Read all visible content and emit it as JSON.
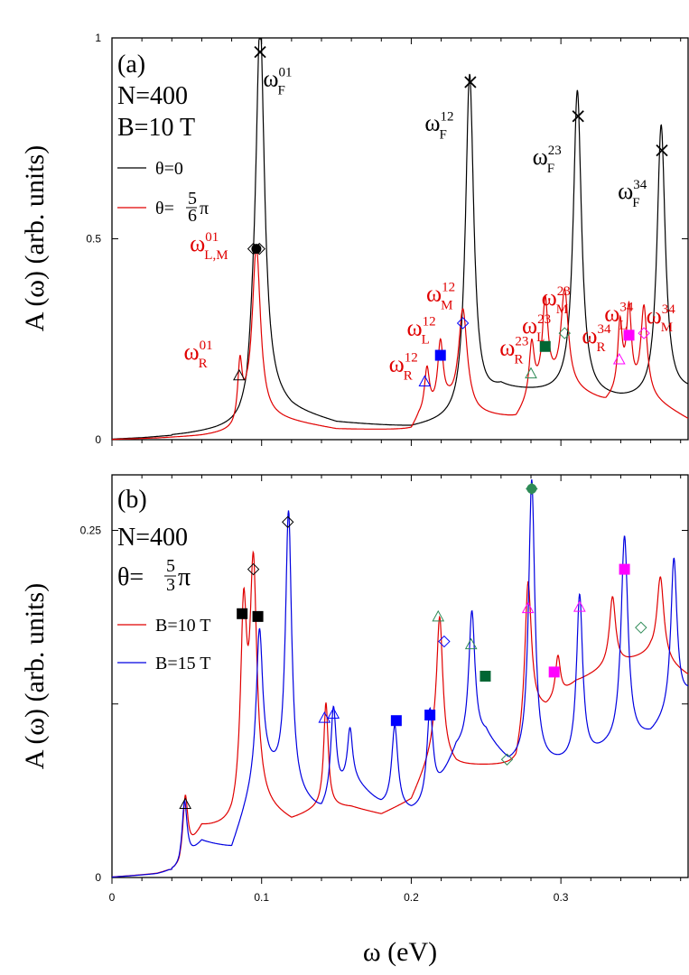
{
  "chart_data": [
    {
      "panel": "(a)",
      "type": "line",
      "info_lines": [
        "N=400",
        "B=10 T"
      ],
      "xlabel": "ω (eV)",
      "ylabel": "A (ω) (arb. units)",
      "xlim": [
        0,
        0.385
      ],
      "ylim": [
        0,
        1.0
      ],
      "xticks": [
        0,
        0.1,
        0.2,
        0.3
      ],
      "xtick_labels": [
        "",
        "",
        "",
        ""
      ],
      "yticks": [
        0,
        0.5,
        1
      ],
      "ytick_labels": [
        "0",
        "0.5",
        "1"
      ],
      "legend": "upper-left",
      "series": [
        {
          "name": "θ=0",
          "color": "#000000",
          "base": [
            [
              0,
              0.0
            ],
            [
              0.02,
              0.003
            ],
            [
              0.05,
              0.012
            ],
            [
              0.07,
              0.02
            ],
            [
              0.08,
              0.025
            ],
            [
              0.085,
              0.03
            ],
            [
              0.09,
              0.045
            ],
            [
              0.094,
              0.12
            ],
            [
              0.12,
              0.07
            ],
            [
              0.15,
              0.04
            ],
            [
              0.2,
              0.028
            ],
            [
              0.23,
              0.045
            ],
            [
              0.26,
              0.12
            ],
            [
              0.3,
              0.11
            ],
            [
              0.34,
              0.095
            ],
            [
              0.36,
              0.095
            ],
            [
              0.385,
              0.115
            ]
          ],
          "peaks": [
            [
              0.099,
              0.93,
              0.0035
            ],
            [
              0.239,
              0.84,
              0.0033
            ],
            [
              0.311,
              0.76,
              0.0033
            ],
            [
              0.367,
              0.68,
              0.0033
            ]
          ]
        },
        {
          "name": "θ= 5/6π",
          "color": "#e00000",
          "base": [
            [
              0,
              0.0
            ],
            [
              0.03,
              0.003
            ],
            [
              0.06,
              0.008
            ],
            [
              0.08,
              0.015
            ],
            [
              0.085,
              0.02
            ],
            [
              0.09,
              0.06
            ],
            [
              0.11,
              0.05
            ],
            [
              0.15,
              0.025
            ],
            [
              0.2,
              0.022
            ],
            [
              0.205,
              0.05
            ],
            [
              0.225,
              0.08
            ],
            [
              0.245,
              0.06
            ],
            [
              0.27,
              0.05
            ],
            [
              0.28,
              0.1
            ],
            [
              0.29,
              0.14
            ],
            [
              0.31,
              0.12
            ],
            [
              0.33,
              0.09
            ],
            [
              0.34,
              0.12
            ],
            [
              0.36,
              0.1
            ],
            [
              0.385,
              0.05
            ]
          ],
          "peaks": [
            [
              0.0855,
              0.15,
              0.0018
            ],
            [
              0.0965,
              0.42,
              0.0033
            ],
            [
              0.2105,
              0.11,
              0.002
            ],
            [
              0.2195,
              0.16,
              0.0022
            ],
            [
              0.2345,
              0.25,
              0.0035
            ],
            [
              0.2805,
              0.13,
              0.002
            ],
            [
              0.2895,
              0.2,
              0.0022
            ],
            [
              0.3025,
              0.24,
              0.003
            ],
            [
              0.3395,
              0.16,
              0.0018
            ],
            [
              0.3455,
              0.2,
              0.002
            ],
            [
              0.3555,
              0.22,
              0.0025
            ]
          ]
        }
      ],
      "markers": [
        {
          "shape": "cross",
          "color": "#000000",
          "points": [
            [
              0.099,
              0.965
            ],
            [
              0.2395,
              0.89
            ],
            [
              0.3115,
              0.805
            ],
            [
              0.3675,
              0.72
            ]
          ]
        },
        {
          "shape": "triangle",
          "color": "#000000",
          "points": [
            [
              0.085,
              0.16
            ]
          ]
        },
        {
          "shape": "triangle",
          "color": "#0000ff",
          "points": [
            [
              0.209,
              0.145
            ]
          ]
        },
        {
          "shape": "triangle",
          "color": "#2e8b57",
          "points": [
            [
              0.28,
              0.165
            ]
          ]
        },
        {
          "shape": "triangle",
          "color": "#ff00ff",
          "points": [
            [
              0.339,
              0.2
            ]
          ]
        },
        {
          "shape": "diamond",
          "color": "#000000",
          "points": [
            [
              0.0945,
              0.475
            ],
            [
              0.0985,
              0.475
            ]
          ]
        },
        {
          "shape": "diamond",
          "color": "#0000ff",
          "points": [
            [
              0.2345,
              0.29
            ]
          ]
        },
        {
          "shape": "diamond",
          "color": "#2e8b57",
          "points": [
            [
              0.3025,
              0.265
            ]
          ]
        },
        {
          "shape": "diamond",
          "color": "#ff00ff",
          "points": [
            [
              0.3555,
              0.265
            ]
          ]
        },
        {
          "shape": "square",
          "color": "#0000ff",
          "points": [
            [
              0.2195,
              0.21
            ]
          ]
        },
        {
          "shape": "square",
          "color": "#006633",
          "points": [
            [
              0.2895,
              0.232
            ]
          ]
        },
        {
          "shape": "square",
          "color": "#ff00ff",
          "points": [
            [
              0.3455,
              0.26
            ]
          ]
        },
        {
          "shape": "filled-circle",
          "color": "#000000",
          "points": [
            [
              0.0965,
              0.475
            ]
          ]
        }
      ],
      "annotations": [
        {
          "base": "ω",
          "sup": "01",
          "sub": "F",
          "color": "#000000",
          "x": 0.101,
          "y": 0.88
        },
        {
          "base": "ω",
          "sup": "12",
          "sub": "F",
          "color": "#000000",
          "x": 0.209,
          "y": 0.77
        },
        {
          "base": "ω",
          "sup": "23",
          "sub": "F",
          "color": "#000000",
          "x": 0.281,
          "y": 0.685
        },
        {
          "base": "ω",
          "sup": "34",
          "sub": "F",
          "color": "#000000",
          "x": 0.338,
          "y": 0.6
        },
        {
          "base": "ω",
          "sup": "01",
          "sub": "L,M",
          "color": "#e00000",
          "x": 0.052,
          "y": 0.47
        },
        {
          "base": "ω",
          "sup": "01",
          "sub": "R",
          "color": "#e00000",
          "x": 0.048,
          "y": 0.2
        },
        {
          "base": "ω",
          "sup": "12",
          "sub": "M",
          "color": "#e00000",
          "x": 0.21,
          "y": 0.345
        },
        {
          "base": "ω",
          "sup": "12",
          "sub": "L",
          "color": "#e00000",
          "x": 0.197,
          "y": 0.26
        },
        {
          "base": "ω",
          "sup": "12",
          "sub": "R",
          "color": "#e00000",
          "x": 0.185,
          "y": 0.17
        },
        {
          "base": "ω",
          "sup": "23",
          "sub": "M",
          "color": "#e00000",
          "x": 0.287,
          "y": 0.335
        },
        {
          "base": "ω",
          "sup": "23",
          "sub": "L",
          "color": "#e00000",
          "x": 0.274,
          "y": 0.265
        },
        {
          "base": "ω",
          "sup": "23",
          "sub": "R",
          "color": "#e00000",
          "x": 0.259,
          "y": 0.21
        },
        {
          "base": "ω",
          "sup": "34",
          "sub": "L",
          "color": "#e00000",
          "x": 0.329,
          "y": 0.295
        },
        {
          "base": "ω",
          "sup": "34",
          "sub": "M",
          "color": "#e00000",
          "x": 0.357,
          "y": 0.29
        },
        {
          "base": "ω",
          "sup": "34",
          "sub": "R",
          "color": "#e00000",
          "x": 0.314,
          "y": 0.24
        }
      ]
    },
    {
      "panel": "(b)",
      "type": "line",
      "info_lines": [
        "N=400"
      ],
      "xlabel": "ω (eV)",
      "ylabel": "A (ω) (arb. units)",
      "xlim": [
        0,
        0.385
      ],
      "ylim": [
        0,
        0.29
      ],
      "xticks": [
        0,
        0.1,
        0.2,
        0.3
      ],
      "xtick_labels": [
        "0",
        "0.1",
        "0.2",
        "0.3"
      ],
      "yticks": [
        0,
        0.125,
        0.25
      ],
      "ytick_labels": [
        "0",
        "",
        "0.25"
      ],
      "legend": "left",
      "series": [
        {
          "name": "B=10 T",
          "color": "#e00000",
          "base": [
            [
              0,
              0.0
            ],
            [
              0.03,
              0.002
            ],
            [
              0.045,
              0.005
            ],
            [
              0.06,
              0.035
            ],
            [
              0.08,
              0.035
            ],
            [
              0.1,
              0.05
            ],
            [
              0.12,
              0.04
            ],
            [
              0.14,
              0.05
            ],
            [
              0.16,
              0.05
            ],
            [
              0.18,
              0.045
            ],
            [
              0.2,
              0.055
            ],
            [
              0.215,
              0.09
            ],
            [
              0.23,
              0.08
            ],
            [
              0.25,
              0.08
            ],
            [
              0.27,
              0.08
            ],
            [
              0.28,
              0.12
            ],
            [
              0.29,
              0.12
            ],
            [
              0.31,
              0.14
            ],
            [
              0.33,
              0.15
            ],
            [
              0.36,
              0.16
            ],
            [
              0.385,
              0.145
            ]
          ],
          "peaks": [
            [
              0.049,
              0.045,
              0.002
            ],
            [
              0.088,
              0.14,
              0.0025
            ],
            [
              0.0945,
              0.17,
              0.0028
            ],
            [
              0.143,
              0.075,
              0.0018
            ],
            [
              0.219,
              0.1,
              0.0025
            ],
            [
              0.278,
              0.1,
              0.0025
            ],
            [
              0.298,
              0.03,
              0.002
            ],
            [
              0.3345,
              0.05,
              0.0025
            ],
            [
              0.3665,
              0.06,
              0.0028
            ]
          ]
        },
        {
          "name": "B=15 T",
          "color": "#0000e0",
          "base": [
            [
              0,
              0.0
            ],
            [
              0.03,
              0.002
            ],
            [
              0.045,
              0.005
            ],
            [
              0.06,
              0.025
            ],
            [
              0.08,
              0.02
            ],
            [
              0.1,
              0.08
            ],
            [
              0.12,
              0.06
            ],
            [
              0.14,
              0.045
            ],
            [
              0.16,
              0.07
            ],
            [
              0.18,
              0.05
            ],
            [
              0.2,
              0.045
            ],
            [
              0.213,
              0.05
            ],
            [
              0.23,
              0.09
            ],
            [
              0.25,
              0.1
            ],
            [
              0.265,
              0.08
            ],
            [
              0.275,
              0.08
            ],
            [
              0.3,
              0.08
            ],
            [
              0.31,
              0.08
            ],
            [
              0.33,
              0.09
            ],
            [
              0.36,
              0.1
            ],
            [
              0.385,
              0.13
            ]
          ],
          "peaks": [
            [
              0.0485,
              0.045,
              0.002
            ],
            [
              0.0985,
              0.1,
              0.0025
            ],
            [
              0.118,
              0.2,
              0.0025
            ],
            [
              0.148,
              0.065,
              0.0022
            ],
            [
              0.159,
              0.035,
              0.002
            ],
            [
              0.189,
              0.06,
              0.0025
            ],
            [
              0.2125,
              0.07,
              0.0025
            ],
            [
              0.2405,
              0.095,
              0.0025
            ],
            [
              0.2805,
              0.205,
              0.0025
            ],
            [
              0.3125,
              0.12,
              0.0025
            ],
            [
              0.3425,
              0.15,
              0.0028
            ],
            [
              0.3755,
              0.11,
              0.0025
            ]
          ]
        }
      ],
      "markers": [
        {
          "shape": "triangle",
          "color": "#000000",
          "points": [
            [
              0.049,
              0.053
            ]
          ]
        },
        {
          "shape": "triangle",
          "color": "#0000ff",
          "points": [
            [
              0.142,
              0.115
            ],
            [
              0.148,
              0.118
            ]
          ]
        },
        {
          "shape": "triangle",
          "color": "#2e8b57",
          "points": [
            [
              0.218,
              0.188
            ],
            [
              0.24,
              0.168
            ]
          ]
        },
        {
          "shape": "triangle",
          "color": "#ff00ff",
          "points": [
            [
              0.278,
              0.194
            ],
            [
              0.3125,
              0.195
            ]
          ]
        },
        {
          "shape": "diamond",
          "color": "#000000",
          "points": [
            [
              0.0945,
              0.222
            ],
            [
              0.1175,
              0.256
            ]
          ]
        },
        {
          "shape": "diamond",
          "color": "#0000ff",
          "points": [
            [
              0.222,
              0.17
            ]
          ]
        },
        {
          "shape": "diamond",
          "color": "#2e8b57",
          "points": [
            [
              0.264,
              0.085
            ],
            [
              0.2805,
              0.28
            ],
            [
              0.3535,
              0.18
            ]
          ]
        },
        {
          "shape": "diamond",
          "color": "#ff00ff",
          "points": []
        },
        {
          "shape": "square",
          "color": "#000000",
          "points": [
            [
              0.087,
              0.19
            ],
            [
              0.0975,
              0.188
            ]
          ]
        },
        {
          "shape": "square",
          "color": "#0000ff",
          "points": [
            [
              0.19,
              0.113
            ],
            [
              0.2125,
              0.117
            ]
          ]
        },
        {
          "shape": "square",
          "color": "#006633",
          "points": [
            [
              0.2495,
              0.145
            ]
          ]
        },
        {
          "shape": "square",
          "color": "#ff00ff",
          "points": [
            [
              0.2955,
              0.148
            ],
            [
              0.3425,
              0.222
            ]
          ]
        },
        {
          "shape": "filled-circle",
          "color": "#2e8b57",
          "points": [
            [
              0.2805,
              0.28
            ]
          ]
        }
      ],
      "annotations": []
    }
  ],
  "legends": {
    "a": {
      "item1": "θ=0",
      "item2_prefix": "θ=",
      "item2_num": "5",
      "item2_den": "6",
      "item2_suffix": "π"
    },
    "b": {
      "theta_prefix": "θ=",
      "theta_num": "5",
      "theta_den": "3",
      "theta_suffix": "π",
      "item1": "B=10 T",
      "item2": "B=15 T"
    }
  }
}
